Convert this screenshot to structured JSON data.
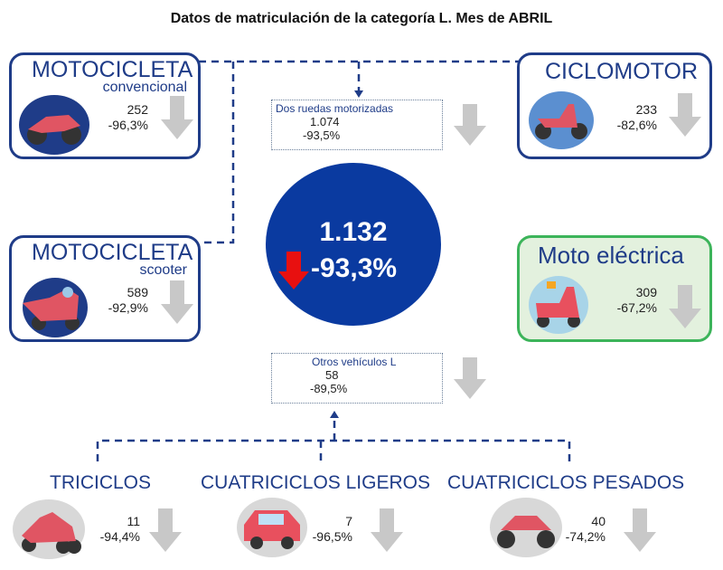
{
  "title": "Datos de matriculación de la categoría L. Mes de ABRIL",
  "colors": {
    "navy": "#1f3c88",
    "circle": "#0a3aa0",
    "green": "#3cb45a",
    "down_red": "#e81010",
    "arrow_grey": "#c8c8c8"
  },
  "total": {
    "value": "1.132",
    "change": "-93,3%"
  },
  "motocicleta_convencional": {
    "title": "MOTOCICLETA",
    "subtitle": "convencional",
    "value": "252",
    "change": "-96,3%"
  },
  "motocicleta_scooter": {
    "title": "MOTOCICLETA",
    "subtitle": "scooter",
    "value": "589",
    "change": "-92,9%"
  },
  "ciclomotor": {
    "title": "CICLOMOTOR",
    "value": "233",
    "change": "-82,6%"
  },
  "moto_electrica": {
    "title": "Moto eléctrica",
    "value": "309",
    "change": "-67,2%"
  },
  "dos_ruedas": {
    "label": "Dos ruedas motorizadas",
    "value": "1.074",
    "change": "-93,5%"
  },
  "otros": {
    "label": "Otros vehículos L",
    "value": "58",
    "change": "-89,5%"
  },
  "triciclos": {
    "title": "TRICICLOS",
    "value": "11",
    "change": "-94,4%"
  },
  "cuatriciclos_ligeros": {
    "title": "CUATRICICLOS LIGEROS",
    "value": "7",
    "change": "-96,5%"
  },
  "cuatriciclos_pesados": {
    "title": "CUATRICICLOS PESADOS",
    "value": "40",
    "change": "-74,2%"
  }
}
